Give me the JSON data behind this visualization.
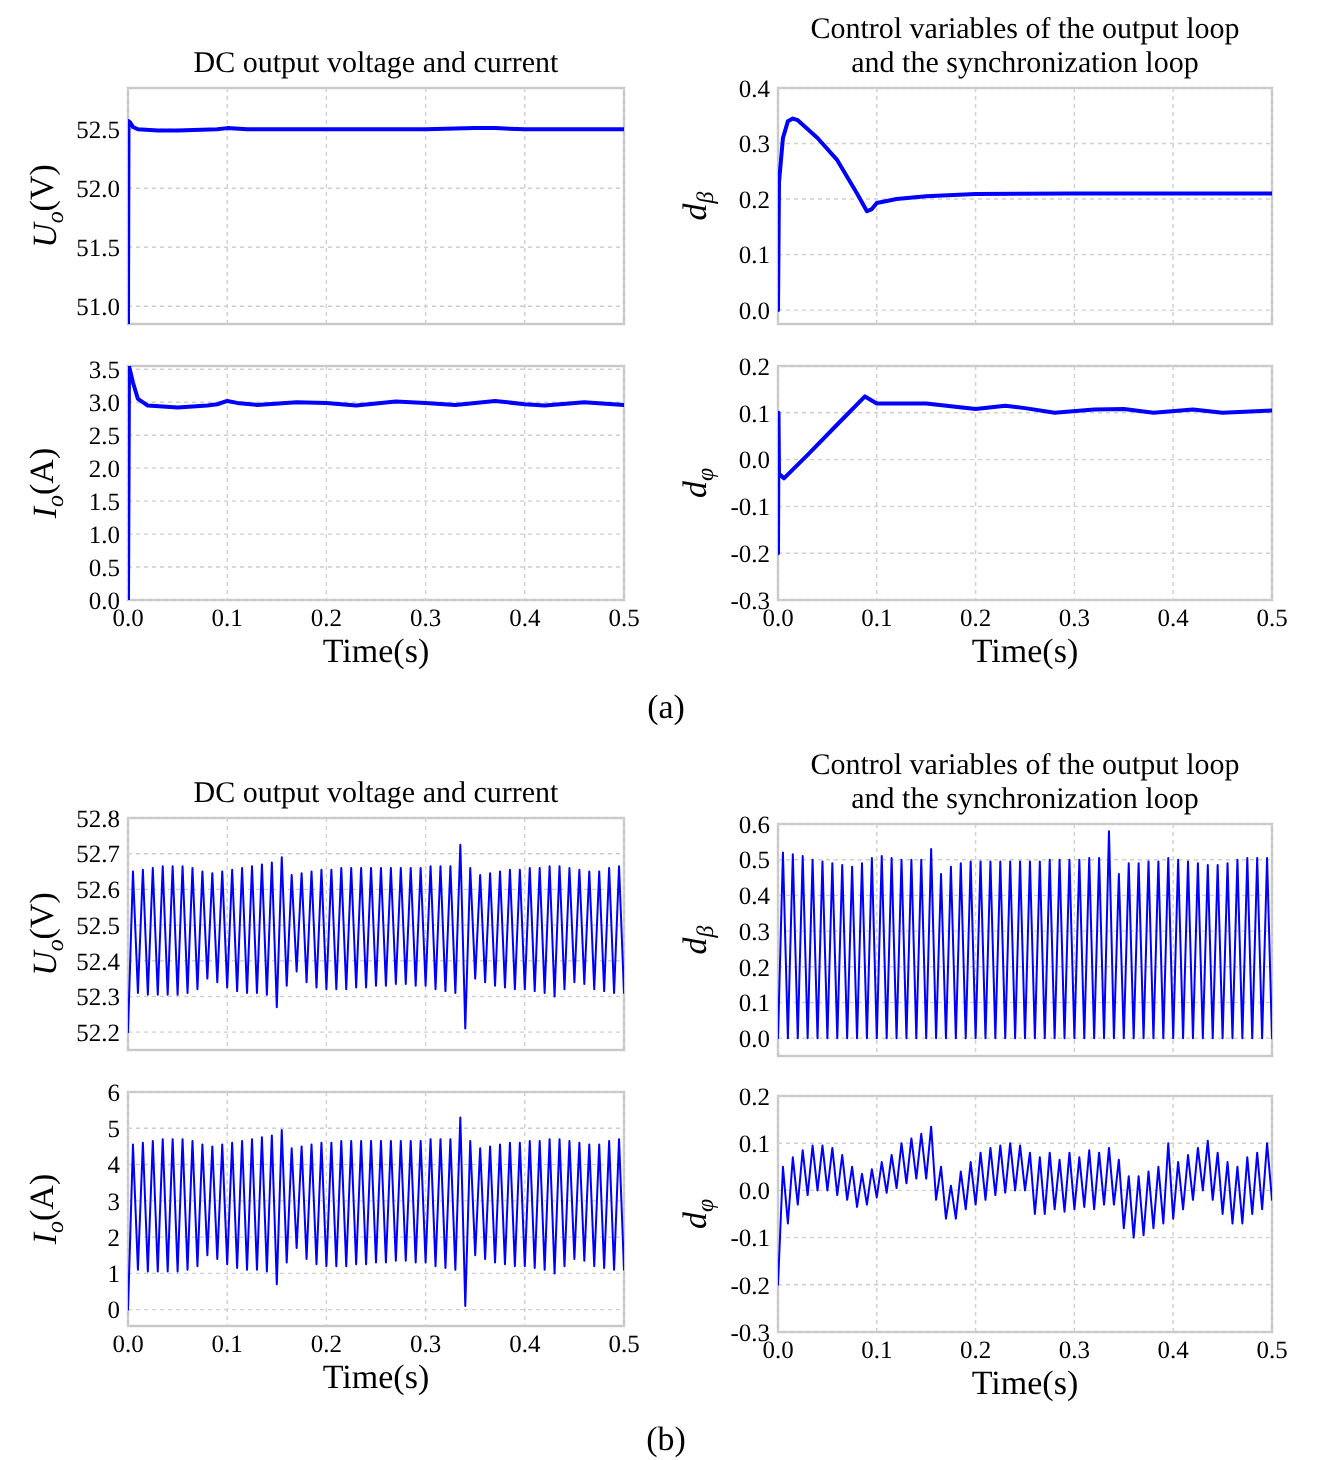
{
  "chart_data": [
    {
      "type": "line",
      "title": "DC output voltage and current",
      "ylabel": "U$_{o}$(V)",
      "xlim": [
        0,
        0.5
      ],
      "xticks": [
        0,
        0.1,
        0.2,
        0.3,
        0.4,
        0.5
      ],
      "ylim": [
        50.85,
        52.85
      ],
      "yticks": [
        {
          "value": 51,
          "label": "51.0"
        },
        51.5,
        {
          "value": 52,
          "label": "52.0"
        },
        52.5
      ],
      "grid": true,
      "tick_labels": "y",
      "series": [
        {
          "color": "#0000ff",
          "x": [
            0,
            0.0005,
            0.002,
            0.005,
            0.01,
            0.03,
            0.05,
            0.09,
            0.1,
            0.12,
            0.2,
            0.3,
            0.35,
            0.37,
            0.4,
            0.5
          ],
          "values": [
            50.85,
            52.57,
            52.56,
            52.52,
            52.5,
            52.49,
            52.49,
            52.5,
            52.51,
            52.5,
            52.5,
            52.5,
            52.51,
            52.51,
            52.5,
            52.5
          ]
        }
      ]
    },
    {
      "type": "line",
      "title": "Control variables of the output loop and the synchronization loop",
      "ylabel": "d$_{β}$",
      "xlim": [
        0,
        0.5
      ],
      "xticks": [
        0,
        0.1,
        0.2,
        0.3,
        0.4,
        0.5
      ],
      "ylim": [
        -0.025,
        0.4
      ],
      "yticks": [
        {
          "value": 0,
          "label": "0.0"
        },
        0.1,
        0.2,
        0.3,
        0.4
      ],
      "grid": true,
      "tick_labels": "y",
      "series": [
        {
          "color": "#0000ff",
          "x": [
            0,
            0.001,
            0.005,
            0.01,
            0.015,
            0.02,
            0.04,
            0.06,
            0.08,
            0.09,
            0.095,
            0.1,
            0.12,
            0.15,
            0.2,
            0.3,
            0.4,
            0.5
          ],
          "values": [
            0,
            0.23,
            0.31,
            0.34,
            0.345,
            0.342,
            0.31,
            0.27,
            0.21,
            0.178,
            0.182,
            0.193,
            0.2,
            0.205,
            0.209,
            0.21,
            0.21,
            0.21
          ]
        }
      ]
    },
    {
      "type": "line",
      "xlabel": "Time(s)",
      "ylabel": "I$_{o}$(A)",
      "xlim": [
        0,
        0.5
      ],
      "xticks": [
        {
          "value": 0,
          "label": "0.0"
        },
        {
          "value": 0.1,
          "label": "0.1"
        },
        {
          "value": 0.2,
          "label": "0.2"
        },
        {
          "value": 0.3,
          "label": "0.3"
        },
        {
          "value": 0.4,
          "label": "0.4"
        },
        {
          "value": 0.5,
          "label": "0.5"
        }
      ],
      "ylim": [
        0,
        3.55
      ],
      "yticks": [
        {
          "value": 0,
          "label": "0.0"
        },
        0.5,
        {
          "value": 1,
          "label": "1.0"
        },
        1.5,
        {
          "value": 2,
          "label": "2.0"
        },
        2.5,
        {
          "value": 3,
          "label": "3.0"
        },
        3.5
      ],
      "grid": true,
      "series": [
        {
          "color": "#0000ff",
          "x": [
            0,
            0.001,
            0.005,
            0.01,
            0.02,
            0.05,
            0.08,
            0.09,
            0.1,
            0.11,
            0.13,
            0.17,
            0.2,
            0.23,
            0.27,
            0.3,
            0.33,
            0.37,
            0.4,
            0.42,
            0.46,
            0.5
          ],
          "values": [
            0,
            3.55,
            3.3,
            3.05,
            2.95,
            2.92,
            2.95,
            2.97,
            3.02,
            2.99,
            2.96,
            3.0,
            2.99,
            2.95,
            3.01,
            2.99,
            2.96,
            3.02,
            2.97,
            2.95,
            3.0,
            2.96
          ]
        }
      ]
    },
    {
      "type": "line",
      "xlabel": "Time(s)",
      "ylabel": "d$_{φ}$",
      "xlim": [
        0,
        0.5
      ],
      "xticks": [
        {
          "value": 0,
          "label": "0.0"
        },
        {
          "value": 0.1,
          "label": "0.1"
        },
        {
          "value": 0.2,
          "label": "0.2"
        },
        {
          "value": 0.3,
          "label": "0.3"
        },
        {
          "value": 0.4,
          "label": "0.4"
        },
        {
          "value": 0.5,
          "label": "0.5"
        }
      ],
      "ylim": [
        -0.3,
        0.2
      ],
      "yticks": [
        -0.3,
        -0.2,
        -0.1,
        {
          "value": 0,
          "label": "0.0"
        },
        0.1,
        0.2
      ],
      "grid": true,
      "annotations": [
        "(a)"
      ],
      "series": [
        {
          "color": "#0000ff",
          "x": [
            0,
            0.0005,
            0.001,
            0.006,
            0.03,
            0.06,
            0.088,
            0.1,
            0.15,
            0.2,
            0.23,
            0.25,
            0.28,
            0.32,
            0.35,
            0.38,
            0.42,
            0.45,
            0.5
          ],
          "values": [
            -0.2,
            0.1,
            -0.03,
            -0.04,
            0.01,
            0.075,
            0.135,
            0.12,
            0.12,
            0.108,
            0.115,
            0.11,
            0.1,
            0.107,
            0.108,
            0.1,
            0.107,
            0.1,
            0.105
          ]
        }
      ]
    },
    {
      "type": "line",
      "title": "DC output voltage and current",
      "ylabel": "U$_{o}$(V)",
      "xlim": [
        0,
        0.5
      ],
      "xticks": [
        0,
        0.1,
        0.2,
        0.3,
        0.4,
        0.5
      ],
      "ylim": [
        52.15,
        52.8
      ],
      "yticks": [
        52.2,
        52.3,
        52.4,
        52.5,
        52.6,
        52.7,
        52.8
      ],
      "grid": true,
      "tick_labels": "y",
      "x": [
        0,
        0.005,
        0.01,
        0.015,
        0.02,
        0.025,
        0.03,
        0.035,
        0.04,
        0.045,
        0.05,
        0.055,
        0.06,
        0.065,
        0.07,
        0.075,
        0.08,
        0.085,
        0.09,
        0.095,
        0.1,
        0.105,
        0.11,
        0.115,
        0.12,
        0.125,
        0.13,
        0.135,
        0.14,
        0.145,
        0.15,
        0.155,
        0.16,
        0.165,
        0.17,
        0.175,
        0.18,
        0.185,
        0.19,
        0.195,
        0.2,
        0.205,
        0.21,
        0.215,
        0.22,
        0.225,
        0.23,
        0.235,
        0.24,
        0.245,
        0.25,
        0.255,
        0.26,
        0.265,
        0.27,
        0.275,
        0.28,
        0.285,
        0.29,
        0.295,
        0.3,
        0.305,
        0.31,
        0.315,
        0.32,
        0.325,
        0.33,
        0.335,
        0.34,
        0.345,
        0.35,
        0.355,
        0.36,
        0.365,
        0.37,
        0.375,
        0.38,
        0.385,
        0.39,
        0.395,
        0.4,
        0.405,
        0.41,
        0.415,
        0.42,
        0.425,
        0.43,
        0.435,
        0.44,
        0.445,
        0.45,
        0.455,
        0.46,
        0.465,
        0.47,
        0.475,
        0.48,
        0.485,
        0.49,
        0.495,
        0.5
      ],
      "series": [
        {
          "color": "#0000ff",
          "values": [
            52.2,
            52.65,
            52.31,
            52.655,
            52.305,
            52.66,
            52.305,
            52.665,
            52.305,
            52.665,
            52.305,
            52.665,
            52.31,
            52.66,
            52.32,
            52.65,
            52.35,
            52.645,
            52.34,
            52.65,
            52.325,
            52.655,
            52.315,
            52.66,
            52.31,
            52.665,
            52.31,
            52.67,
            52.305,
            52.675,
            52.27,
            52.69,
            52.33,
            52.64,
            52.37,
            52.645,
            52.34,
            52.65,
            52.325,
            52.655,
            52.32,
            52.655,
            52.32,
            52.66,
            52.32,
            52.66,
            52.325,
            52.66,
            52.325,
            52.66,
            52.33,
            52.66,
            52.33,
            52.66,
            52.335,
            52.66,
            52.335,
            52.66,
            52.33,
            52.66,
            52.33,
            52.665,
            52.32,
            52.665,
            52.315,
            52.665,
            52.31,
            52.725,
            52.21,
            52.66,
            52.35,
            52.64,
            52.34,
            52.645,
            52.33,
            52.65,
            52.325,
            52.655,
            52.32,
            52.655,
            52.32,
            52.66,
            52.315,
            52.66,
            52.31,
            52.665,
            52.3,
            52.665,
            52.32,
            52.66,
            52.34,
            52.655,
            52.335,
            52.65,
            52.32,
            52.65,
            52.315,
            52.66,
            52.31,
            52.665,
            52.31
          ]
        }
      ]
    },
    {
      "type": "line",
      "title": "Control variables of the output loop and the synchronization loop",
      "ylabel": "d$_{β}$",
      "xlim": [
        0,
        0.5
      ],
      "xticks": [
        0,
        0.1,
        0.2,
        0.3,
        0.4,
        0.5
      ],
      "ylim": [
        -0.05,
        0.6
      ],
      "yticks": [
        {
          "value": 0,
          "label": "0.0"
        },
        0.1,
        0.2,
        0.3,
        0.4,
        0.5,
        0.6
      ],
      "grid": true,
      "tick_labels": "y",
      "x": [
        0,
        0.005,
        0.01,
        0.015,
        0.02,
        0.025,
        0.03,
        0.035,
        0.04,
        0.045,
        0.05,
        0.055,
        0.06,
        0.065,
        0.07,
        0.075,
        0.08,
        0.085,
        0.09,
        0.095,
        0.1,
        0.105,
        0.11,
        0.115,
        0.12,
        0.125,
        0.13,
        0.135,
        0.14,
        0.145,
        0.15,
        0.155,
        0.16,
        0.165,
        0.17,
        0.175,
        0.18,
        0.185,
        0.19,
        0.195,
        0.2,
        0.205,
        0.21,
        0.215,
        0.22,
        0.225,
        0.23,
        0.235,
        0.24,
        0.245,
        0.25,
        0.255,
        0.26,
        0.265,
        0.27,
        0.275,
        0.28,
        0.285,
        0.29,
        0.295,
        0.3,
        0.305,
        0.31,
        0.315,
        0.32,
        0.325,
        0.33,
        0.335,
        0.34,
        0.345,
        0.35,
        0.355,
        0.36,
        0.365,
        0.37,
        0.375,
        0.38,
        0.385,
        0.39,
        0.395,
        0.4,
        0.405,
        0.41,
        0.415,
        0.42,
        0.425,
        0.43,
        0.435,
        0.44,
        0.445,
        0.45,
        0.455,
        0.46,
        0.465,
        0.47,
        0.475,
        0.48,
        0.485,
        0.49,
        0.495,
        0.5
      ],
      "series": [
        {
          "color": "#0000ff",
          "values": [
            0,
            0.52,
            0,
            0.515,
            0,
            0.51,
            0,
            0.5,
            0,
            0.495,
            0,
            0.49,
            0,
            0.485,
            0,
            0.48,
            0,
            0.49,
            0,
            0.505,
            0,
            0.51,
            0,
            0.505,
            0,
            0.5,
            0,
            0.5,
            0,
            0.5,
            0,
            0.53,
            0,
            0.46,
            0,
            0.48,
            0,
            0.49,
            0,
            0.495,
            0,
            0.495,
            0,
            0.495,
            0,
            0.495,
            0,
            0.495,
            0,
            0.495,
            0,
            0.495,
            0,
            0.495,
            0,
            0.5,
            0,
            0.5,
            0,
            0.5,
            0,
            0.5,
            0,
            0.505,
            0,
            0.505,
            0,
            0.58,
            0,
            0.46,
            0,
            0.49,
            0,
            0.49,
            0,
            0.495,
            0,
            0.495,
            0,
            0.505,
            0,
            0.5,
            0,
            0.495,
            0,
            0.49,
            0,
            0.485,
            0,
            0.485,
            0,
            0.49,
            0,
            0.5,
            0,
            0.505,
            0,
            0.505,
            0,
            0.505,
            0
          ]
        }
      ]
    },
    {
      "type": "line",
      "xlabel": "Time(s)",
      "ylabel": "I$_{o}$(A)",
      "xlim": [
        0,
        0.5
      ],
      "xticks": [
        {
          "value": 0,
          "label": "0.0"
        },
        {
          "value": 0.1,
          "label": "0.1"
        },
        {
          "value": 0.2,
          "label": "0.2"
        },
        {
          "value": 0.3,
          "label": "0.3"
        },
        {
          "value": 0.4,
          "label": "0.4"
        },
        {
          "value": 0.5,
          "label": "0.5"
        }
      ],
      "ylim": [
        -0.45,
        6
      ],
      "yticks": [
        0,
        1,
        2,
        3,
        4,
        5,
        6
      ],
      "grid": true,
      "x": [
        0,
        0.005,
        0.01,
        0.015,
        0.02,
        0.025,
        0.03,
        0.035,
        0.04,
        0.045,
        0.05,
        0.055,
        0.06,
        0.065,
        0.07,
        0.075,
        0.08,
        0.085,
        0.09,
        0.095,
        0.1,
        0.105,
        0.11,
        0.115,
        0.12,
        0.125,
        0.13,
        0.135,
        0.14,
        0.145,
        0.15,
        0.155,
        0.16,
        0.165,
        0.17,
        0.175,
        0.18,
        0.185,
        0.19,
        0.195,
        0.2,
        0.205,
        0.21,
        0.215,
        0.22,
        0.225,
        0.23,
        0.235,
        0.24,
        0.245,
        0.25,
        0.255,
        0.26,
        0.265,
        0.27,
        0.275,
        0.28,
        0.285,
        0.29,
        0.295,
        0.3,
        0.305,
        0.31,
        0.315,
        0.32,
        0.325,
        0.33,
        0.335,
        0.34,
        0.345,
        0.35,
        0.355,
        0.36,
        0.365,
        0.37,
        0.375,
        0.38,
        0.385,
        0.39,
        0.395,
        0.4,
        0.405,
        0.41,
        0.415,
        0.42,
        0.425,
        0.43,
        0.435,
        0.44,
        0.445,
        0.45,
        0.455,
        0.46,
        0.465,
        0.47,
        0.475,
        0.48,
        0.485,
        0.49,
        0.495,
        0.5
      ],
      "series": [
        {
          "color": "#0000ff",
          "values": [
            0,
            4.55,
            1.1,
            4.6,
            1.05,
            4.65,
            1.05,
            4.7,
            1.05,
            4.7,
            1.05,
            4.7,
            1.1,
            4.65,
            1.2,
            4.55,
            1.5,
            4.5,
            1.4,
            4.55,
            1.25,
            4.6,
            1.15,
            4.65,
            1.1,
            4.7,
            1.1,
            4.75,
            1.05,
            4.8,
            0.7,
            4.95,
            1.3,
            4.45,
            1.7,
            4.5,
            1.4,
            4.55,
            1.25,
            4.6,
            1.2,
            4.6,
            1.2,
            4.65,
            1.2,
            4.65,
            1.25,
            4.65,
            1.25,
            4.65,
            1.3,
            4.65,
            1.3,
            4.65,
            1.35,
            4.65,
            1.35,
            4.65,
            1.3,
            4.65,
            1.3,
            4.7,
            1.2,
            4.7,
            1.15,
            4.7,
            1.1,
            5.3,
            0.1,
            4.65,
            1.5,
            4.45,
            1.4,
            4.5,
            1.3,
            4.55,
            1.25,
            4.6,
            1.2,
            4.6,
            1.2,
            4.65,
            1.15,
            4.65,
            1.1,
            4.7,
            1.0,
            4.7,
            1.2,
            4.65,
            1.4,
            4.6,
            1.35,
            4.55,
            1.2,
            4.55,
            1.15,
            4.65,
            1.1,
            4.7,
            1.1
          ]
        }
      ]
    },
    {
      "type": "line",
      "xlabel": "Time(s)",
      "ylabel": "d$_{φ}$",
      "xlim": [
        0,
        0.5
      ],
      "xticks": [
        {
          "value": 0,
          "label": "0.0"
        },
        {
          "value": 0.1,
          "label": "0.1"
        },
        {
          "value": 0.2,
          "label": "0.2"
        },
        {
          "value": 0.3,
          "label": "0.3"
        },
        {
          "value": 0.4,
          "label": "0.4"
        },
        {
          "value": 0.5,
          "label": "0.5"
        }
      ],
      "ylim": [
        -0.3,
        0.2
      ],
      "yticks": [
        -0.3,
        -0.2,
        -0.1,
        {
          "value": 0,
          "label": "0.0"
        },
        0.1,
        0.2
      ],
      "grid": true,
      "annotations": [
        "(b)"
      ],
      "x": [
        0,
        0.005,
        0.01,
        0.015,
        0.02,
        0.025,
        0.03,
        0.035,
        0.04,
        0.045,
        0.05,
        0.055,
        0.06,
        0.065,
        0.07,
        0.075,
        0.08,
        0.085,
        0.09,
        0.095,
        0.1,
        0.105,
        0.11,
        0.115,
        0.12,
        0.125,
        0.13,
        0.135,
        0.14,
        0.145,
        0.15,
        0.155,
        0.16,
        0.165,
        0.17,
        0.175,
        0.18,
        0.185,
        0.19,
        0.195,
        0.2,
        0.205,
        0.21,
        0.215,
        0.22,
        0.225,
        0.23,
        0.235,
        0.24,
        0.245,
        0.25,
        0.255,
        0.26,
        0.265,
        0.27,
        0.275,
        0.28,
        0.285,
        0.29,
        0.295,
        0.3,
        0.305,
        0.31,
        0.315,
        0.32,
        0.325,
        0.33,
        0.335,
        0.34,
        0.345,
        0.35,
        0.355,
        0.36,
        0.365,
        0.37,
        0.375,
        0.38,
        0.385,
        0.39,
        0.395,
        0.4,
        0.405,
        0.41,
        0.415,
        0.42,
        0.425,
        0.43,
        0.435,
        0.44,
        0.445,
        0.45,
        0.455,
        0.46,
        0.465,
        0.47,
        0.475,
        0.48,
        0.485,
        0.49,
        0.495,
        0.5
      ],
      "series": [
        {
          "color": "#0000ff",
          "values": [
            -0.2,
            0.05,
            -0.07,
            0.07,
            -0.03,
            0.085,
            -0.01,
            0.095,
            0,
            0.095,
            0,
            0.09,
            -0.01,
            0.075,
            -0.02,
            0.05,
            -0.035,
            0.035,
            -0.03,
            0.045,
            -0.015,
            0.06,
            -0.005,
            0.075,
            0.005,
            0.1,
            0.015,
            0.11,
            0.025,
            0.12,
            0.025,
            0.135,
            -0.02,
            0.05,
            -0.06,
            0.01,
            -0.06,
            0.04,
            -0.04,
            0.06,
            -0.03,
            0.08,
            -0.02,
            0.09,
            -0.01,
            0.095,
            -0.005,
            0.1,
            0,
            0.095,
            0,
            0.08,
            -0.05,
            0.07,
            -0.05,
            0.08,
            -0.04,
            0.065,
            -0.045,
            0.08,
            -0.04,
            0.07,
            -0.035,
            0.085,
            -0.04,
            0.08,
            -0.03,
            0.09,
            -0.03,
            0.065,
            -0.08,
            0.03,
            -0.1,
            0.03,
            -0.095,
            0.04,
            -0.08,
            0.05,
            -0.07,
            0.1,
            -0.06,
            0.06,
            -0.04,
            0.075,
            -0.02,
            0.09,
            0,
            0.105,
            -0.02,
            0.08,
            -0.05,
            0.06,
            -0.07,
            0.05,
            -0.07,
            0.07,
            -0.05,
            0.08,
            -0.04,
            0.1,
            -0.02
          ]
        }
      ]
    }
  ]
}
